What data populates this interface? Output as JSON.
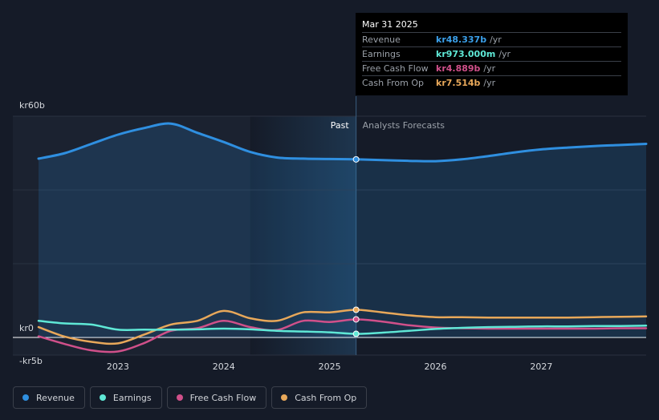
{
  "tooltip": {
    "date": "Mar 31 2025",
    "rows": [
      {
        "label": "Revenue",
        "value": "kr48.337b",
        "unit": "/yr",
        "color": "#3ba0ea"
      },
      {
        "label": "Earnings",
        "value": "kr973.000m",
        "unit": "/yr",
        "color": "#5fe8d6"
      },
      {
        "label": "Free Cash Flow",
        "value": "kr4.889b",
        "unit": "/yr",
        "color": "#d0508a"
      },
      {
        "label": "Cash From Op",
        "value": "kr7.514b",
        "unit": "/yr",
        "color": "#e8a85a"
      }
    ]
  },
  "legend": [
    {
      "label": "Revenue",
      "color": "#2f8fe0"
    },
    {
      "label": "Earnings",
      "color": "#5fe8d6"
    },
    {
      "label": "Free Cash Flow",
      "color": "#d0508a"
    },
    {
      "label": "Cash From Op",
      "color": "#e8a85a"
    }
  ],
  "chart_data": {
    "type": "line",
    "title": "",
    "xlabel": "",
    "ylabel": "",
    "y_tick_labels": [
      "kr60b",
      "kr0",
      "-kr5b"
    ],
    "ylim": [
      -5,
      60
    ],
    "xlim": [
      2022.25,
      2027.99
    ],
    "x_ticks": [
      2023,
      2024,
      2025,
      2026,
      2027
    ],
    "x_tick_labels": [
      "2023",
      "2024",
      "2025",
      "2026",
      "2027"
    ],
    "past_label": "Past",
    "forecast_label": "Analysts Forecasts",
    "past_region_start": 2024.25,
    "current_date": 2025.25,
    "series": [
      {
        "name": "Revenue",
        "color": "#2f8fe0",
        "fill": true,
        "x": [
          2022.25,
          2022.5,
          2022.75,
          2023.0,
          2023.25,
          2023.5,
          2023.75,
          2024.0,
          2024.25,
          2024.5,
          2024.75,
          2025.0,
          2025.25,
          2025.5,
          2025.75,
          2026.0,
          2026.25,
          2026.5,
          2026.75,
          2027.0,
          2027.25,
          2027.5,
          2027.75,
          2027.99
        ],
        "values": [
          48.5,
          50.0,
          52.5,
          55.0,
          56.8,
          58.0,
          55.5,
          53.0,
          50.3,
          48.8,
          48.5,
          48.4,
          48.3,
          48.1,
          47.9,
          47.8,
          48.3,
          49.2,
          50.2,
          51.0,
          51.5,
          51.9,
          52.2,
          52.5
        ]
      },
      {
        "name": "Earnings",
        "color": "#5fe8d6",
        "x": [
          2022.25,
          2022.5,
          2022.75,
          2023.0,
          2023.25,
          2023.5,
          2023.75,
          2024.0,
          2024.25,
          2024.5,
          2024.75,
          2025.0,
          2025.25,
          2025.5,
          2025.75,
          2026.0,
          2026.25,
          2026.5,
          2026.75,
          2027.0,
          2027.25,
          2027.5,
          2027.75,
          2027.99
        ],
        "values": [
          4.5,
          3.8,
          3.5,
          2.1,
          2.1,
          2.1,
          2.2,
          2.4,
          2.2,
          1.8,
          1.6,
          1.4,
          0.97,
          1.3,
          1.8,
          2.3,
          2.6,
          2.8,
          2.9,
          3.0,
          3.0,
          3.1,
          3.1,
          3.2
        ]
      },
      {
        "name": "Free Cash Flow",
        "color": "#d0508a",
        "x": [
          2022.25,
          2022.5,
          2022.75,
          2023.0,
          2023.25,
          2023.5,
          2023.75,
          2024.0,
          2024.25,
          2024.5,
          2024.75,
          2025.0,
          2025.25,
          2025.5,
          2025.75,
          2026.0,
          2026.25,
          2026.5,
          2026.75,
          2027.0,
          2027.25,
          2027.5,
          2027.75,
          2027.99
        ],
        "values": [
          0.3,
          -1.8,
          -3.5,
          -3.8,
          -1.5,
          1.8,
          2.5,
          4.5,
          2.8,
          2.0,
          4.5,
          4.2,
          4.9,
          4.3,
          3.3,
          2.7,
          2.5,
          2.4,
          2.4,
          2.4,
          2.4,
          2.4,
          2.5,
          2.5
        ]
      },
      {
        "name": "Cash From Op",
        "color": "#e8a85a",
        "x": [
          2022.25,
          2022.5,
          2022.75,
          2023.0,
          2023.25,
          2023.5,
          2023.75,
          2024.0,
          2024.25,
          2024.5,
          2024.75,
          2025.0,
          2025.25,
          2025.5,
          2025.75,
          2026.0,
          2026.25,
          2026.5,
          2026.75,
          2027.0,
          2027.25,
          2027.5,
          2027.75,
          2027.99
        ],
        "values": [
          2.8,
          0.2,
          -1.2,
          -1.6,
          0.8,
          3.5,
          4.5,
          7.2,
          5.2,
          4.5,
          6.8,
          6.8,
          7.5,
          6.8,
          6.0,
          5.5,
          5.5,
          5.4,
          5.4,
          5.4,
          5.4,
          5.5,
          5.6,
          5.7
        ]
      }
    ]
  }
}
